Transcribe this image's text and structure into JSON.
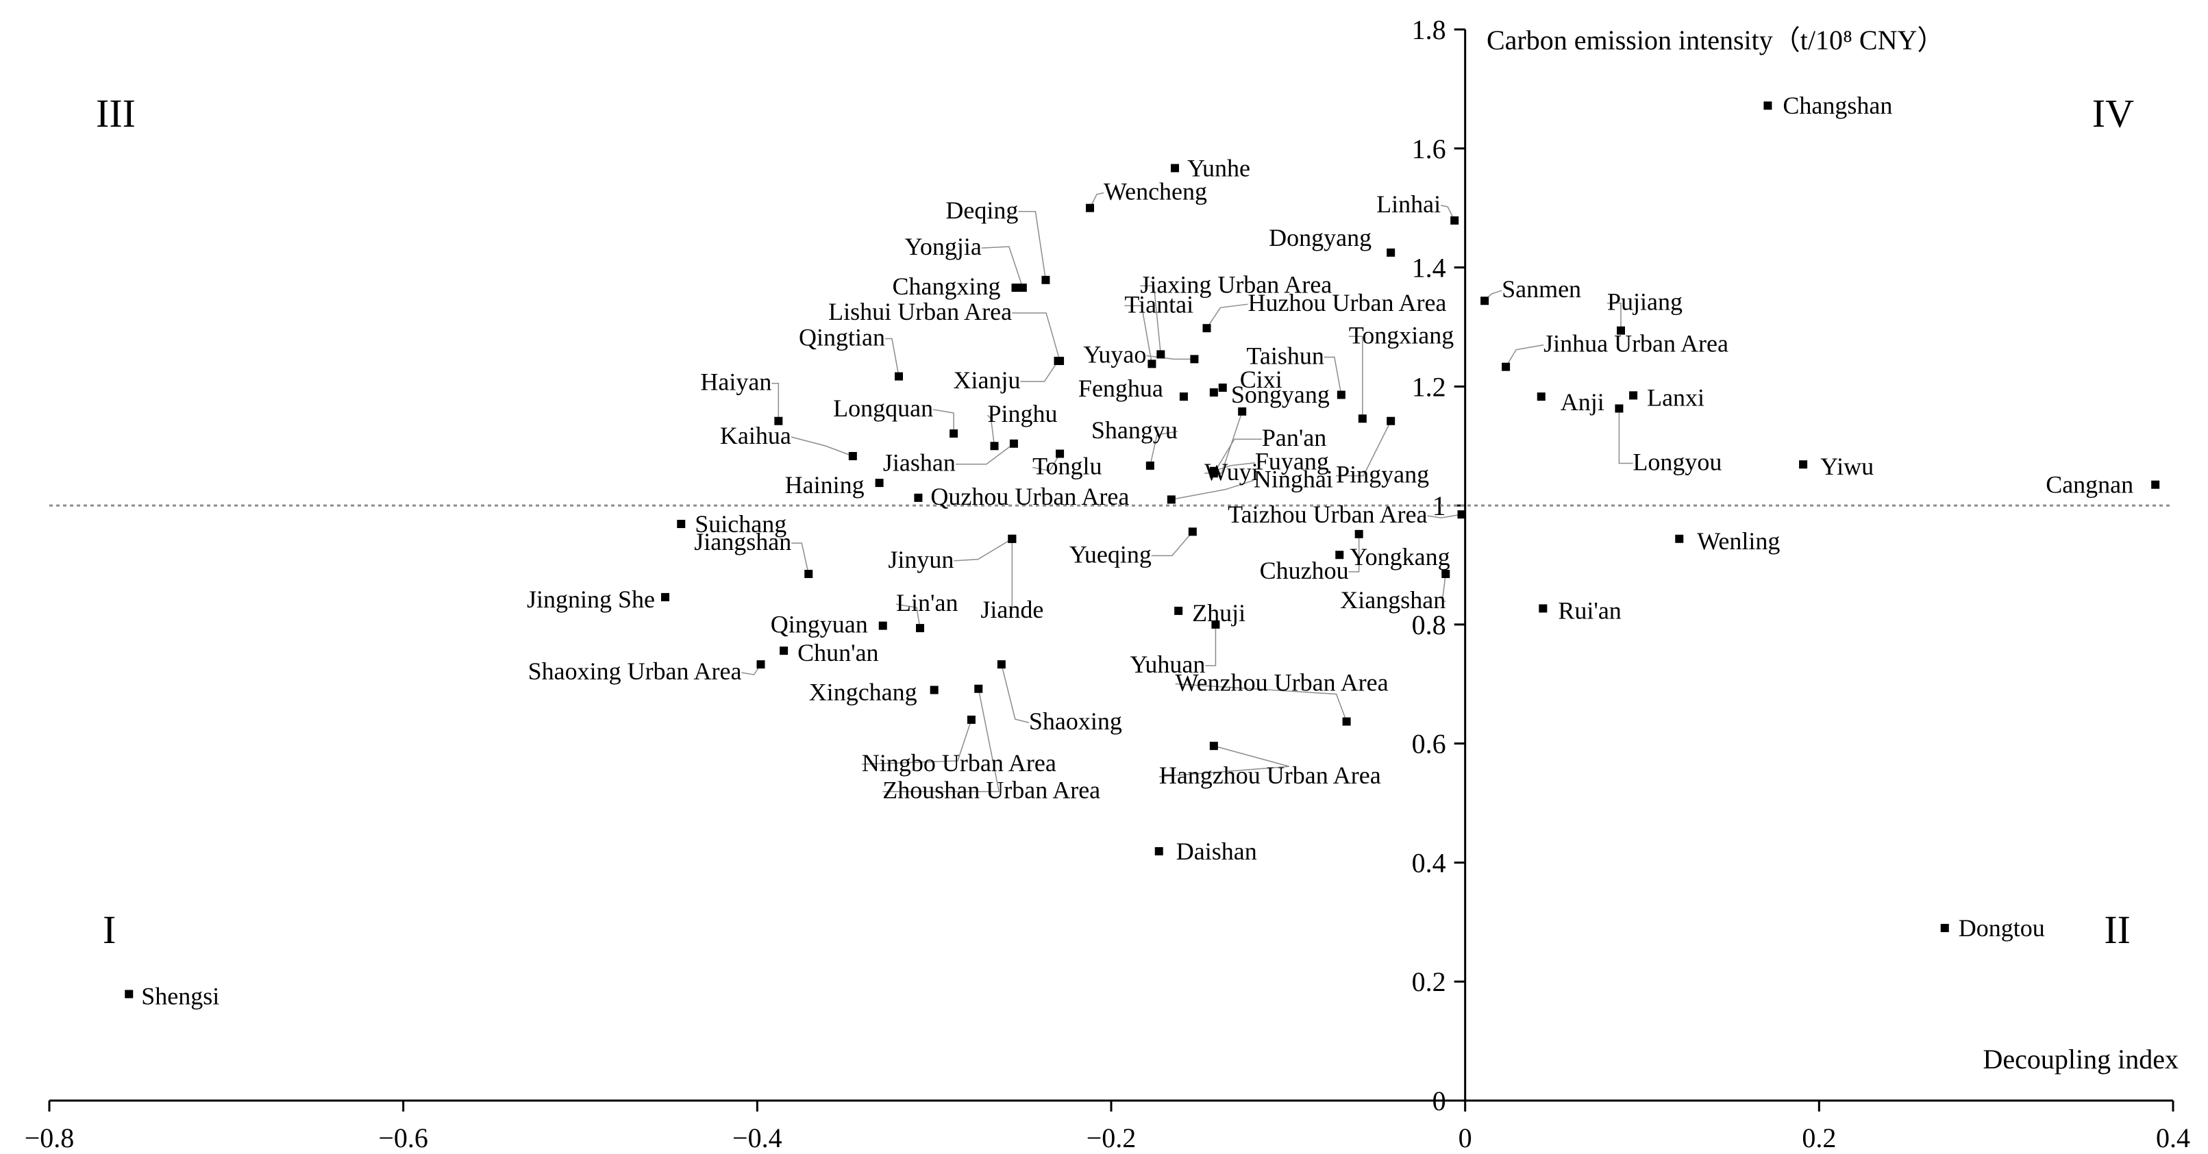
{
  "chart_data": {
    "type": "scatter",
    "xlabel": "Decoupling index",
    "ylabel": "Carbon emission intensity（t/10⁸ CNY）",
    "xlim": [
      -0.8,
      0.4
    ],
    "ylim": [
      0,
      1.8
    ],
    "x_ticks": [
      "−0.8",
      "−0.6",
      "−0.4",
      "−0.2",
      "0",
      "0.2",
      "0.4"
    ],
    "y_ticks": [
      "0",
      "0.2",
      "0.4",
      "0.6",
      "0.8",
      "1",
      "1.2",
      "1.4",
      "1.6",
      "1.8"
    ],
    "reference_line": {
      "y": 1.0,
      "style": "dotted"
    },
    "grid": false,
    "quadrants": [
      {
        "label": "I",
        "position": "bottom-left"
      },
      {
        "label": "II",
        "position": "bottom-right"
      },
      {
        "label": "III",
        "position": "top-left"
      },
      {
        "label": "IV",
        "position": "top-right"
      }
    ],
    "points": [
      {
        "name": "Changshan",
        "x": 0.171,
        "y": 1.672
      },
      {
        "name": "Yunhe",
        "x": -0.164,
        "y": 1.567
      },
      {
        "name": "Wencheng",
        "x": -0.212,
        "y": 1.5
      },
      {
        "name": "Linhai",
        "x": -0.006,
        "y": 1.479
      },
      {
        "name": "Deqing",
        "x": -0.237,
        "y": 1.379
      },
      {
        "name": "Dongyang",
        "x": -0.042,
        "y": 1.425
      },
      {
        "name": "Yongjia",
        "x": -0.25,
        "y": 1.366
      },
      {
        "name": "Changxing",
        "x": -0.254,
        "y": 1.366
      },
      {
        "name": "Jiaxing Urban Area",
        "x": -0.172,
        "y": 1.254
      },
      {
        "name": "Sanmen",
        "x": 0.011,
        "y": 1.344
      },
      {
        "name": "Pujiang",
        "x": 0.088,
        "y": 1.294
      },
      {
        "name": "Lishui Urban Area",
        "x": -0.229,
        "y": 1.243
      },
      {
        "name": "Tiantai",
        "x": -0.177,
        "y": 1.238
      },
      {
        "name": "Huzhou Urban Area",
        "x": -0.146,
        "y": 1.298
      },
      {
        "name": "Yuyao",
        "x": -0.153,
        "y": 1.246
      },
      {
        "name": "Cixi",
        "x": -0.137,
        "y": 1.198
      },
      {
        "name": "Qingtian",
        "x": -0.32,
        "y": 1.217
      },
      {
        "name": "Jinhua Urban Area",
        "x": 0.023,
        "y": 1.233
      },
      {
        "name": "Tongxiang",
        "x": -0.058,
        "y": 1.146
      },
      {
        "name": "Taishun",
        "x": -0.07,
        "y": 1.186
      },
      {
        "name": "Xianju",
        "x": -0.23,
        "y": 1.243
      },
      {
        "name": "Fenghua",
        "x": -0.159,
        "y": 1.183
      },
      {
        "name": "Songyang",
        "x": -0.142,
        "y": 1.19
      },
      {
        "name": "Anji",
        "x": 0.043,
        "y": 1.183
      },
      {
        "name": "Lanxi",
        "x": 0.095,
        "y": 1.185
      },
      {
        "name": "Longyou",
        "x": 0.087,
        "y": 1.163
      },
      {
        "name": "Haiyan",
        "x": -0.388,
        "y": 1.142
      },
      {
        "name": "Longquan",
        "x": -0.289,
        "y": 1.121
      },
      {
        "name": "Pinghu",
        "x": -0.266,
        "y": 1.1
      },
      {
        "name": "Shangyu",
        "x": -0.178,
        "y": 1.067
      },
      {
        "name": "Wuyi",
        "x": -0.126,
        "y": 1.158
      },
      {
        "name": "Pan'an",
        "x": -0.142,
        "y": 1.054
      },
      {
        "name": "Kaihua",
        "x": -0.346,
        "y": 1.083
      },
      {
        "name": "Jiashan",
        "x": -0.255,
        "y": 1.104
      },
      {
        "name": "Tonglu",
        "x": -0.229,
        "y": 1.087
      },
      {
        "name": "Fuyang",
        "x": -0.142,
        "y": 1.058
      },
      {
        "name": "Pingyang",
        "x": -0.042,
        "y": 1.142
      },
      {
        "name": "Yiwu",
        "x": 0.191,
        "y": 1.069
      },
      {
        "name": "Haining",
        "x": -0.331,
        "y": 1.038
      },
      {
        "name": "Quzhou Urban Area",
        "x": -0.309,
        "y": 1.013
      },
      {
        "name": "Ninghai",
        "x": -0.166,
        "y": 1.01
      },
      {
        "name": "Cangnan",
        "x": 0.39,
        "y": 1.035
      },
      {
        "name": "Suichang",
        "x": -0.443,
        "y": 0.969
      },
      {
        "name": "Jinyun",
        "x": -0.256,
        "y": 0.944
      },
      {
        "name": "Yueqing",
        "x": -0.154,
        "y": 0.956
      },
      {
        "name": "Taizhou Urban Area",
        "x": -0.002,
        "y": 0.985
      },
      {
        "name": "Wenling",
        "x": 0.121,
        "y": 0.944
      },
      {
        "name": "Jiangshan",
        "x": -0.371,
        "y": 0.885
      },
      {
        "name": "Yongkang",
        "x": -0.071,
        "y": 0.917
      },
      {
        "name": "Chuzhou",
        "x": -0.06,
        "y": 0.952
      },
      {
        "name": "Xiangshan",
        "x": -0.011,
        "y": 0.885
      },
      {
        "name": "Jiande",
        "x": -0.256,
        "y": 0.944
      },
      {
        "name": "Jingning She",
        "x": -0.452,
        "y": 0.846
      },
      {
        "name": "Rui'an",
        "x": 0.044,
        "y": 0.827
      },
      {
        "name": "Lin'an",
        "x": -0.308,
        "y": 0.794
      },
      {
        "name": "Qingyuan",
        "x": -0.329,
        "y": 0.798
      },
      {
        "name": "Zhuji",
        "x": -0.162,
        "y": 0.823
      },
      {
        "name": "Yuhuan",
        "x": -0.141,
        "y": 0.8
      },
      {
        "name": "Chun'an",
        "x": -0.385,
        "y": 0.756
      },
      {
        "name": "Shaoxing Urban Area",
        "x": -0.398,
        "y": 0.733
      },
      {
        "name": "Shaoxing",
        "x": -0.262,
        "y": 0.733
      },
      {
        "name": "Xingchang",
        "x": -0.3,
        "y": 0.69
      },
      {
        "name": "Ningbo Urban Area",
        "x": -0.279,
        "y": 0.64
      },
      {
        "name": "Zhoushan Urban Area",
        "x": -0.275,
        "y": 0.692
      },
      {
        "name": "Wenzhou Urban Area",
        "x": -0.067,
        "y": 0.637
      },
      {
        "name": "Hangzhou Urban Area",
        "x": -0.142,
        "y": 0.596
      },
      {
        "name": "Daishan",
        "x": -0.173,
        "y": 0.419
      },
      {
        "name": "Dongtou",
        "x": 0.271,
        "y": 0.29
      },
      {
        "name": "Shengsi",
        "x": -0.755,
        "y": 0.179
      }
    ]
  }
}
